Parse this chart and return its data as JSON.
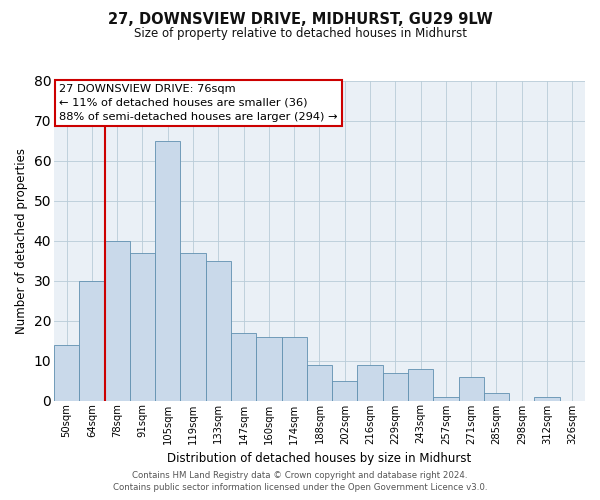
{
  "title": "27, DOWNSVIEW DRIVE, MIDHURST, GU29 9LW",
  "subtitle": "Size of property relative to detached houses in Midhurst",
  "xlabel": "Distribution of detached houses by size in Midhurst",
  "ylabel": "Number of detached properties",
  "bar_values": [
    14,
    30,
    40,
    37,
    65,
    37,
    35,
    17,
    16,
    16,
    9,
    5,
    9,
    7,
    8,
    1,
    6,
    2,
    0,
    1,
    0
  ],
  "categories": [
    "50sqm",
    "64sqm",
    "78sqm",
    "91sqm",
    "105sqm",
    "119sqm",
    "133sqm",
    "147sqm",
    "160sqm",
    "174sqm",
    "188sqm",
    "202sqm",
    "216sqm",
    "229sqm",
    "243sqm",
    "257sqm",
    "271sqm",
    "285sqm",
    "298sqm",
    "312sqm",
    "326sqm"
  ],
  "bar_color": "#c9d9ea",
  "bar_edge_color": "#6090b0",
  "grid_color": "#b8ccd8",
  "bg_color": "#eaf0f6",
  "annotation_text": "27 DOWNSVIEW DRIVE: 76sqm\n← 11% of detached houses are smaller (36)\n88% of semi-detached houses are larger (294) →",
  "vline_bar_index": 2,
  "vline_color": "#cc0000",
  "annotation_box_color": "#ffffff",
  "annotation_box_edge": "#cc0000",
  "ylim": [
    0,
    80
  ],
  "yticks": [
    0,
    10,
    20,
    30,
    40,
    50,
    60,
    70,
    80
  ],
  "footer_line1": "Contains HM Land Registry data © Crown copyright and database right 2024.",
  "footer_line2": "Contains public sector information licensed under the Open Government Licence v3.0."
}
